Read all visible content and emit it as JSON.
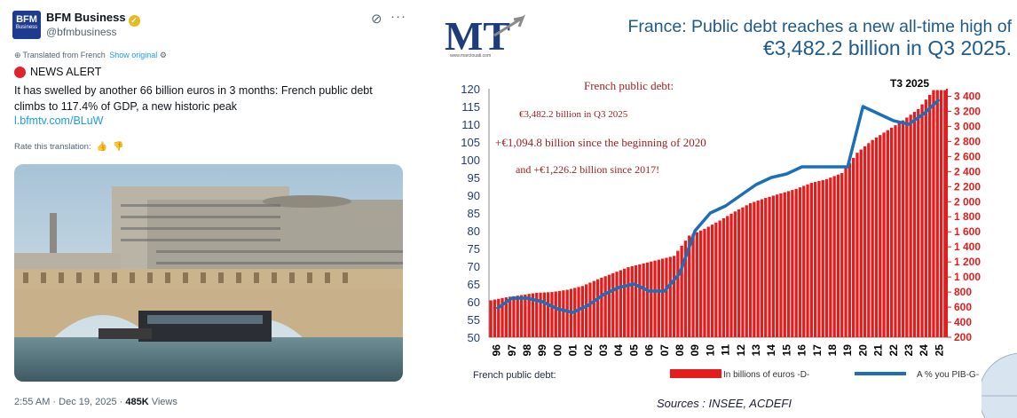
{
  "tweet": {
    "avatar_line1": "BFM",
    "avatar_line2": "Business",
    "display_name": "BFM Business",
    "handle": "@bfmbusiness",
    "translated_label": "Translated from French",
    "show_original": "Show original",
    "alert_text": "NEWS ALERT",
    "body": "It has swelled by another 66 billion euros in 3 months: French public debt climbs to 117.4% of GDP, a new historic peak",
    "link": "l.bfmtv.com/BLuW",
    "rate_label": "Rate this translation:",
    "time": "2:55 AM · Dec 19, 2025 · ",
    "views_count": "485K",
    "views_label": " Views"
  },
  "header": {
    "logo_text": "MT",
    "logo_url": "www.marctouati.com",
    "title_line1": "France: Public debt reaches a new all-time high of",
    "title_line2": "€3,482.2 billion in Q3 2025."
  },
  "sources": "Sources : INSEE, ACDEFI",
  "colors": {
    "bar": "#e51c1c",
    "line": "#1b6fb8",
    "axis_left": "#1f3c7a",
    "axis_right": "#e51c1c"
  },
  "chart_data": {
    "type": "bar",
    "title": "French public debt:",
    "annotations": [
      "€3,482.2 billion in Q3 2025",
      "+€1,094.8 billion since the beginning of 2020",
      "and +€1,226.2 billion since 2017!"
    ],
    "period_label": "T3 2025",
    "categories": [
      "96",
      "97",
      "98",
      "99",
      "00",
      "01",
      "02",
      "03",
      "04",
      "05",
      "06",
      "07",
      "08",
      "09",
      "10",
      "11",
      "12",
      "13",
      "14",
      "15",
      "16",
      "17",
      "18",
      "19",
      "20",
      "21",
      "22",
      "23",
      "24",
      "25"
    ],
    "y_left": {
      "ticks": [
        50,
        55,
        60,
        65,
        70,
        75,
        80,
        85,
        90,
        95,
        100,
        105,
        110,
        115,
        120
      ],
      "range": [
        50,
        120
      ]
    },
    "y_right": {
      "ticks": [
        "200",
        "400",
        "600",
        "800",
        "1 000",
        "1 200",
        "1 400",
        "1 600",
        "1 800",
        "2 000",
        "2 200",
        "2 400",
        "2 600",
        "2 800",
        "3 000",
        "3 200",
        "3 400"
      ],
      "range": [
        200,
        3500
      ]
    },
    "series": [
      {
        "name": "In billions of euros -D-",
        "axis": "right",
        "values": [
          690,
          730,
          760,
          790,
          800,
          830,
          880,
          970,
          1050,
          1130,
          1180,
          1230,
          1280,
          1550,
          1640,
          1750,
          1870,
          1980,
          2050,
          2110,
          2170,
          2250,
          2300,
          2380,
          2650,
          2820,
          2950,
          3080,
          3230,
          3482
        ]
      },
      {
        "name": "A % you PIB-G-",
        "axis": "left",
        "values": [
          58,
          61,
          61,
          60,
          58,
          57,
          59,
          62,
          64,
          65,
          63,
          63,
          68,
          80,
          85,
          87,
          90,
          93,
          95,
          96,
          98,
          98,
          98,
          98,
          115,
          113,
          111,
          110,
          113,
          117
        ]
      }
    ],
    "legend_prefix": "French public debt:"
  }
}
